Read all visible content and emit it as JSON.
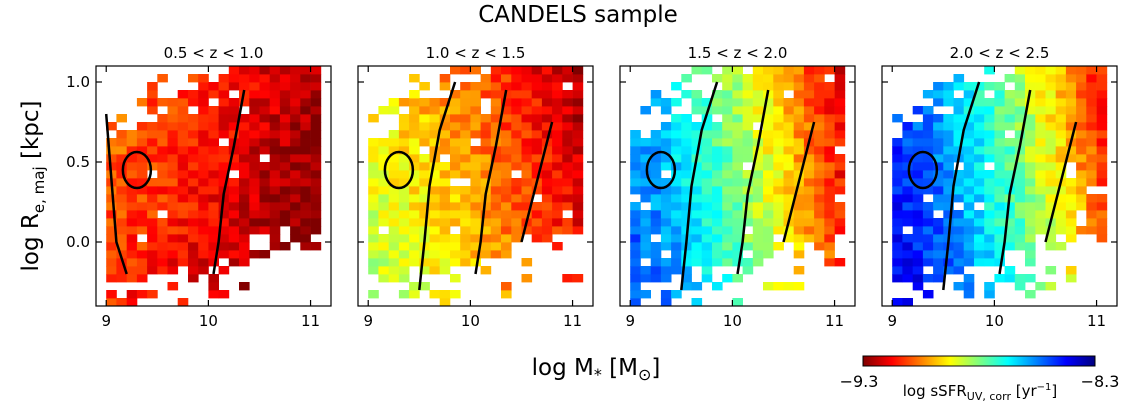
{
  "title": "CANDELS sample",
  "xlabel": "log M",
  "xlabel_star": "*",
  "xlabel_unit_open": " [M",
  "xlabel_unit_sun": "⊙",
  "xlabel_unit_close": "]",
  "ylabel": "log R",
  "ylabel_sub": "e, maj",
  "ylabel_unit": " [kpc]",
  "colorbar": {
    "label": "log sSFR",
    "label_sub": "UV, corr",
    "label_unit": " [yr",
    "label_exp": "−1",
    "label_close": "]",
    "min_label": "−9.3",
    "max_label": "−8.3",
    "vmin": -9.3,
    "vmax": -8.3,
    "colormap": "jet_r",
    "colors": [
      "#7f0000",
      "#ff0000",
      "#ff7f00",
      "#ffff00",
      "#7fff7f",
      "#00ffff",
      "#007fff",
      "#0000ff",
      "#00007f"
    ]
  },
  "chart_data": [
    {
      "type": "heatmap",
      "title": "0.5 < z < 1.0",
      "xlim": [
        8.9,
        11.2
      ],
      "ylim": [
        -0.4,
        1.1
      ],
      "xticks": [
        9,
        10,
        11
      ],
      "yticks": [
        0.0,
        0.5,
        1.0
      ],
      "ytick_labels": [
        "0.0",
        "0.5",
        "1.0"
      ],
      "dominant_log_ssfr": -9.15,
      "description_values": {
        "low_mass_mean": -9.1,
        "high_mass_mean": -9.3
      }
    },
    {
      "type": "heatmap",
      "title": "1.0 < z < 1.5",
      "xlim": [
        8.9,
        11.2
      ],
      "ylim": [
        -0.4,
        1.1
      ],
      "xticks": [
        9,
        10,
        11
      ],
      "yticks": [
        0.0,
        0.5,
        1.0
      ],
      "ytick_labels": [
        "0.0",
        "0.5",
        "1.0"
      ],
      "dominant_log_ssfr": -8.95,
      "description_values": {
        "low_mass_mean": -8.9,
        "high_mass_mean": -9.2
      }
    },
    {
      "type": "heatmap",
      "title": "1.5 < z < 2.0",
      "xlim": [
        8.9,
        11.2
      ],
      "ylim": [
        -0.4,
        1.1
      ],
      "xticks": [
        9,
        10,
        11
      ],
      "yticks": [
        0.0,
        0.5,
        1.0
      ],
      "ytick_labels": [
        "0.0",
        "0.5",
        "1.0"
      ],
      "dominant_log_ssfr": -8.75,
      "description_values": {
        "low_mass_mean": -8.55,
        "high_mass_mean": -9.15
      }
    },
    {
      "type": "heatmap",
      "title": "2.0 < z < 2.5",
      "xlim": [
        8.9,
        11.2
      ],
      "ylim": [
        -0.4,
        1.1
      ],
      "xticks": [
        9,
        10,
        11
      ],
      "yticks": [
        0.0,
        0.5,
        1.0
      ],
      "ytick_labels": [
        "0.0",
        "0.5",
        "1.0"
      ],
      "dominant_log_ssfr": -8.65,
      "description_values": {
        "low_mass_mean": -8.45,
        "high_mass_mean": -9.1
      }
    }
  ]
}
